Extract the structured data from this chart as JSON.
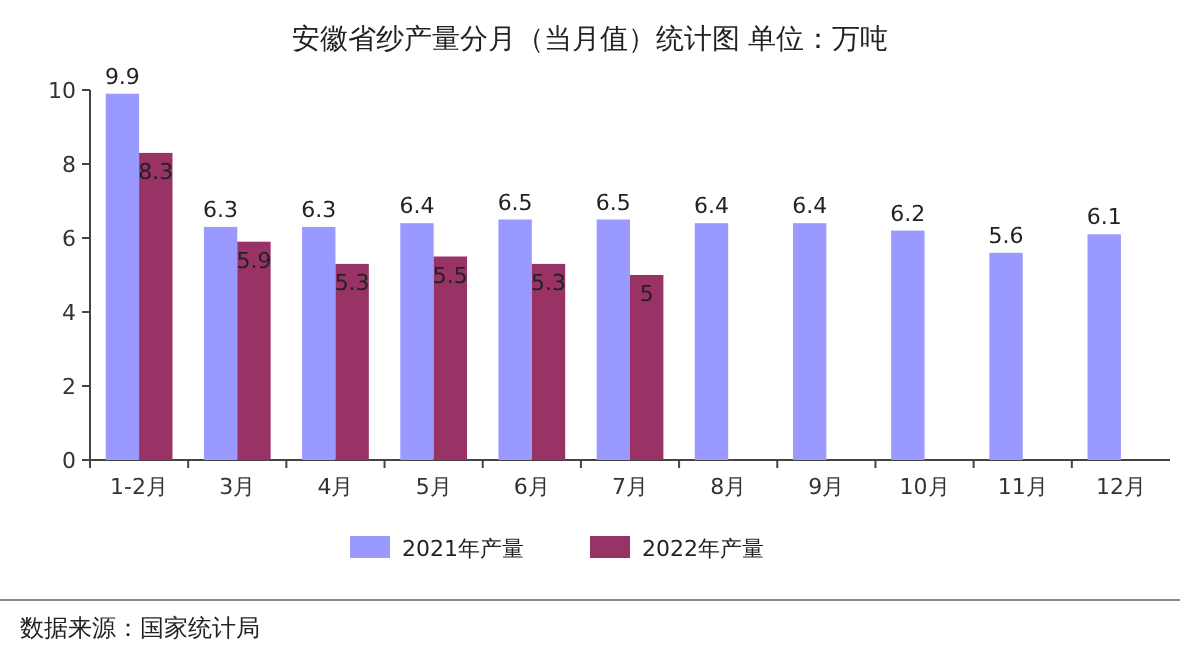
{
  "chart_data": {
    "type": "bar",
    "title": "安徽省纱产量分月（当月值）统计图 单位：万吨",
    "categories": [
      "1-2月",
      "3月",
      "4月",
      "5月",
      "6月",
      "7月",
      "8月",
      "9月",
      "10月",
      "11月",
      "12月"
    ],
    "series": [
      {
        "name": "2021年产量",
        "color": "#9999ff",
        "values": [
          9.9,
          6.3,
          6.3,
          6.4,
          6.5,
          6.5,
          6.4,
          6.4,
          6.2,
          5.6,
          6.1
        ]
      },
      {
        "name": "2022年产量",
        "color": "#993366",
        "values": [
          8.3,
          5.9,
          5.3,
          5.5,
          5.3,
          5,
          null,
          null,
          null,
          null,
          null
        ]
      }
    ],
    "ylim": [
      0,
      10
    ],
    "yticks": [
      0,
      2,
      4,
      6,
      8,
      10
    ],
    "data_labels": true,
    "legend": "bottom",
    "annotations": [
      "数据来源：国家统计局"
    ]
  }
}
